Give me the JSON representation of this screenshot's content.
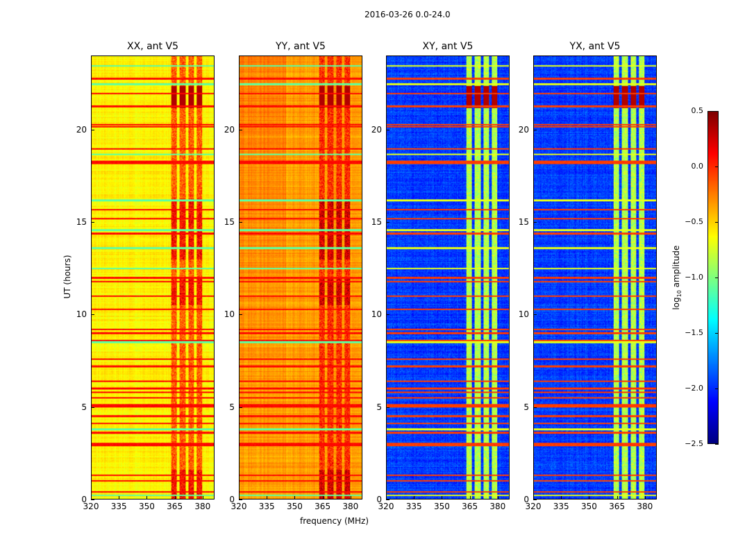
{
  "chart_data": {
    "type": "heatmap",
    "title": "2016-03-26 0.0-24.0",
    "xlabel": "frequency (MHz)",
    "ylabel": "UT (hours)",
    "xlim": [
      320,
      386.4
    ],
    "ylim": [
      0,
      24
    ],
    "xticks": [
      "320",
      "335",
      "350",
      "365",
      "380"
    ],
    "xtick_values": [
      320,
      335,
      350,
      365,
      380
    ],
    "yticks": [
      "0",
      "5",
      "10",
      "15",
      "20"
    ],
    "ytick_values": [
      0,
      5,
      10,
      15,
      20
    ],
    "colorbar": {
      "label": "log10 amplitude",
      "label_main": "log",
      "label_sub": "10",
      "label_rest": " amplitude",
      "colormap": "jet",
      "range": [
        -2.5,
        0.5
      ],
      "ticks": [
        "0.5",
        "0.0",
        "−0.5",
        "−1.0",
        "−1.5",
        "−2.0",
        "−2.5"
      ],
      "tick_values": [
        0.5,
        0.0,
        -0.5,
        -1.0,
        -1.5,
        -2.0,
        -2.5
      ]
    },
    "panels": [
      {
        "title": "XX, ant V5",
        "base_level": -0.6,
        "band_level": -0.15,
        "rfi_level": 0.05
      },
      {
        "title": "YY, ant V5",
        "base_level": -0.35,
        "band_level": 0.0,
        "rfi_level": 0.05
      },
      {
        "title": "XY, ant V5",
        "base_level": -1.95,
        "band_level": -0.85,
        "rfi_level": -0.1
      },
      {
        "title": "YX, ant V5",
        "base_level": -1.95,
        "band_level": -0.85,
        "rfi_level": -0.1
      }
    ],
    "rfi_bands_mhz": [
      [
        363,
        366
      ],
      [
        367.5,
        371
      ],
      [
        372.5,
        375.5
      ],
      [
        377,
        380
      ]
    ],
    "rfi_times_hours": [
      0.4,
      1.0,
      1.3,
      2.9,
      3.0,
      3.6,
      4.1,
      4.5,
      5.0,
      5.1,
      5.5,
      5.8,
      6.0,
      6.4,
      7.2,
      7.6,
      8.6,
      9.0,
      9.2,
      10.3,
      11.0,
      11.8,
      12.0,
      14.4,
      15.2,
      15.7,
      18.2,
      18.3,
      19.0,
      20.2,
      20.3,
      21.3,
      22.0,
      22.8
    ],
    "quiet_times_hours": [
      0.2,
      3.8,
      8.5,
      12.5,
      13.6,
      14.6,
      16.2,
      18.7,
      22.5,
      23.5
    ]
  }
}
